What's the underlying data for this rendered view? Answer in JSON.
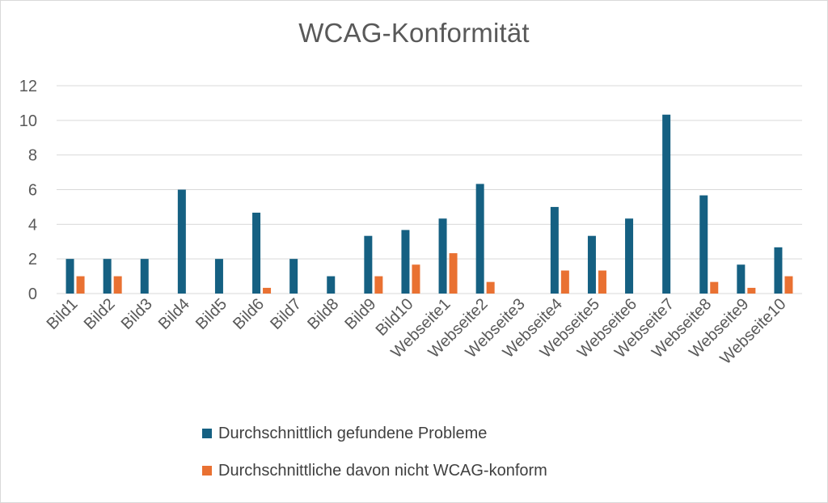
{
  "chart_data": {
    "type": "bar",
    "title": "WCAG-Konformität",
    "xlabel": "",
    "ylabel": "",
    "ylim": [
      0,
      12
    ],
    "yticks": [
      0,
      2,
      4,
      6,
      8,
      10,
      12
    ],
    "grid": true,
    "legend_position": "bottom",
    "categories": [
      "Bild1",
      "Bild2",
      "Bild3",
      "Bild4",
      "Bild5",
      "Bild6",
      "Bild7",
      "Bild8",
      "Bild9",
      "Bild10",
      "Webseite1",
      "Webseite2",
      "Webseite3",
      "Webseite4",
      "Webseite5",
      "Webseite6",
      "Webseite7",
      "Webseite8",
      "Webseite9",
      "Webseite10"
    ],
    "series": [
      {
        "name": "Durchschnittlich gefundene Probleme",
        "color": "#156082",
        "values": [
          2,
          2,
          2,
          6,
          2,
          4.67,
          2,
          1,
          3.33,
          3.67,
          4.33,
          6.33,
          0,
          5,
          3.33,
          4.33,
          10.33,
          5.67,
          1.67,
          2.67
        ]
      },
      {
        "name": "Durchschnittliche davon nicht WCAG-konform",
        "color": "#E97132",
        "values": [
          1,
          1,
          0,
          0,
          0,
          0.33,
          0,
          0,
          1,
          1.67,
          2.33,
          0.67,
          0,
          1.33,
          1.33,
          0,
          0,
          0.67,
          0.33,
          1
        ]
      }
    ]
  }
}
